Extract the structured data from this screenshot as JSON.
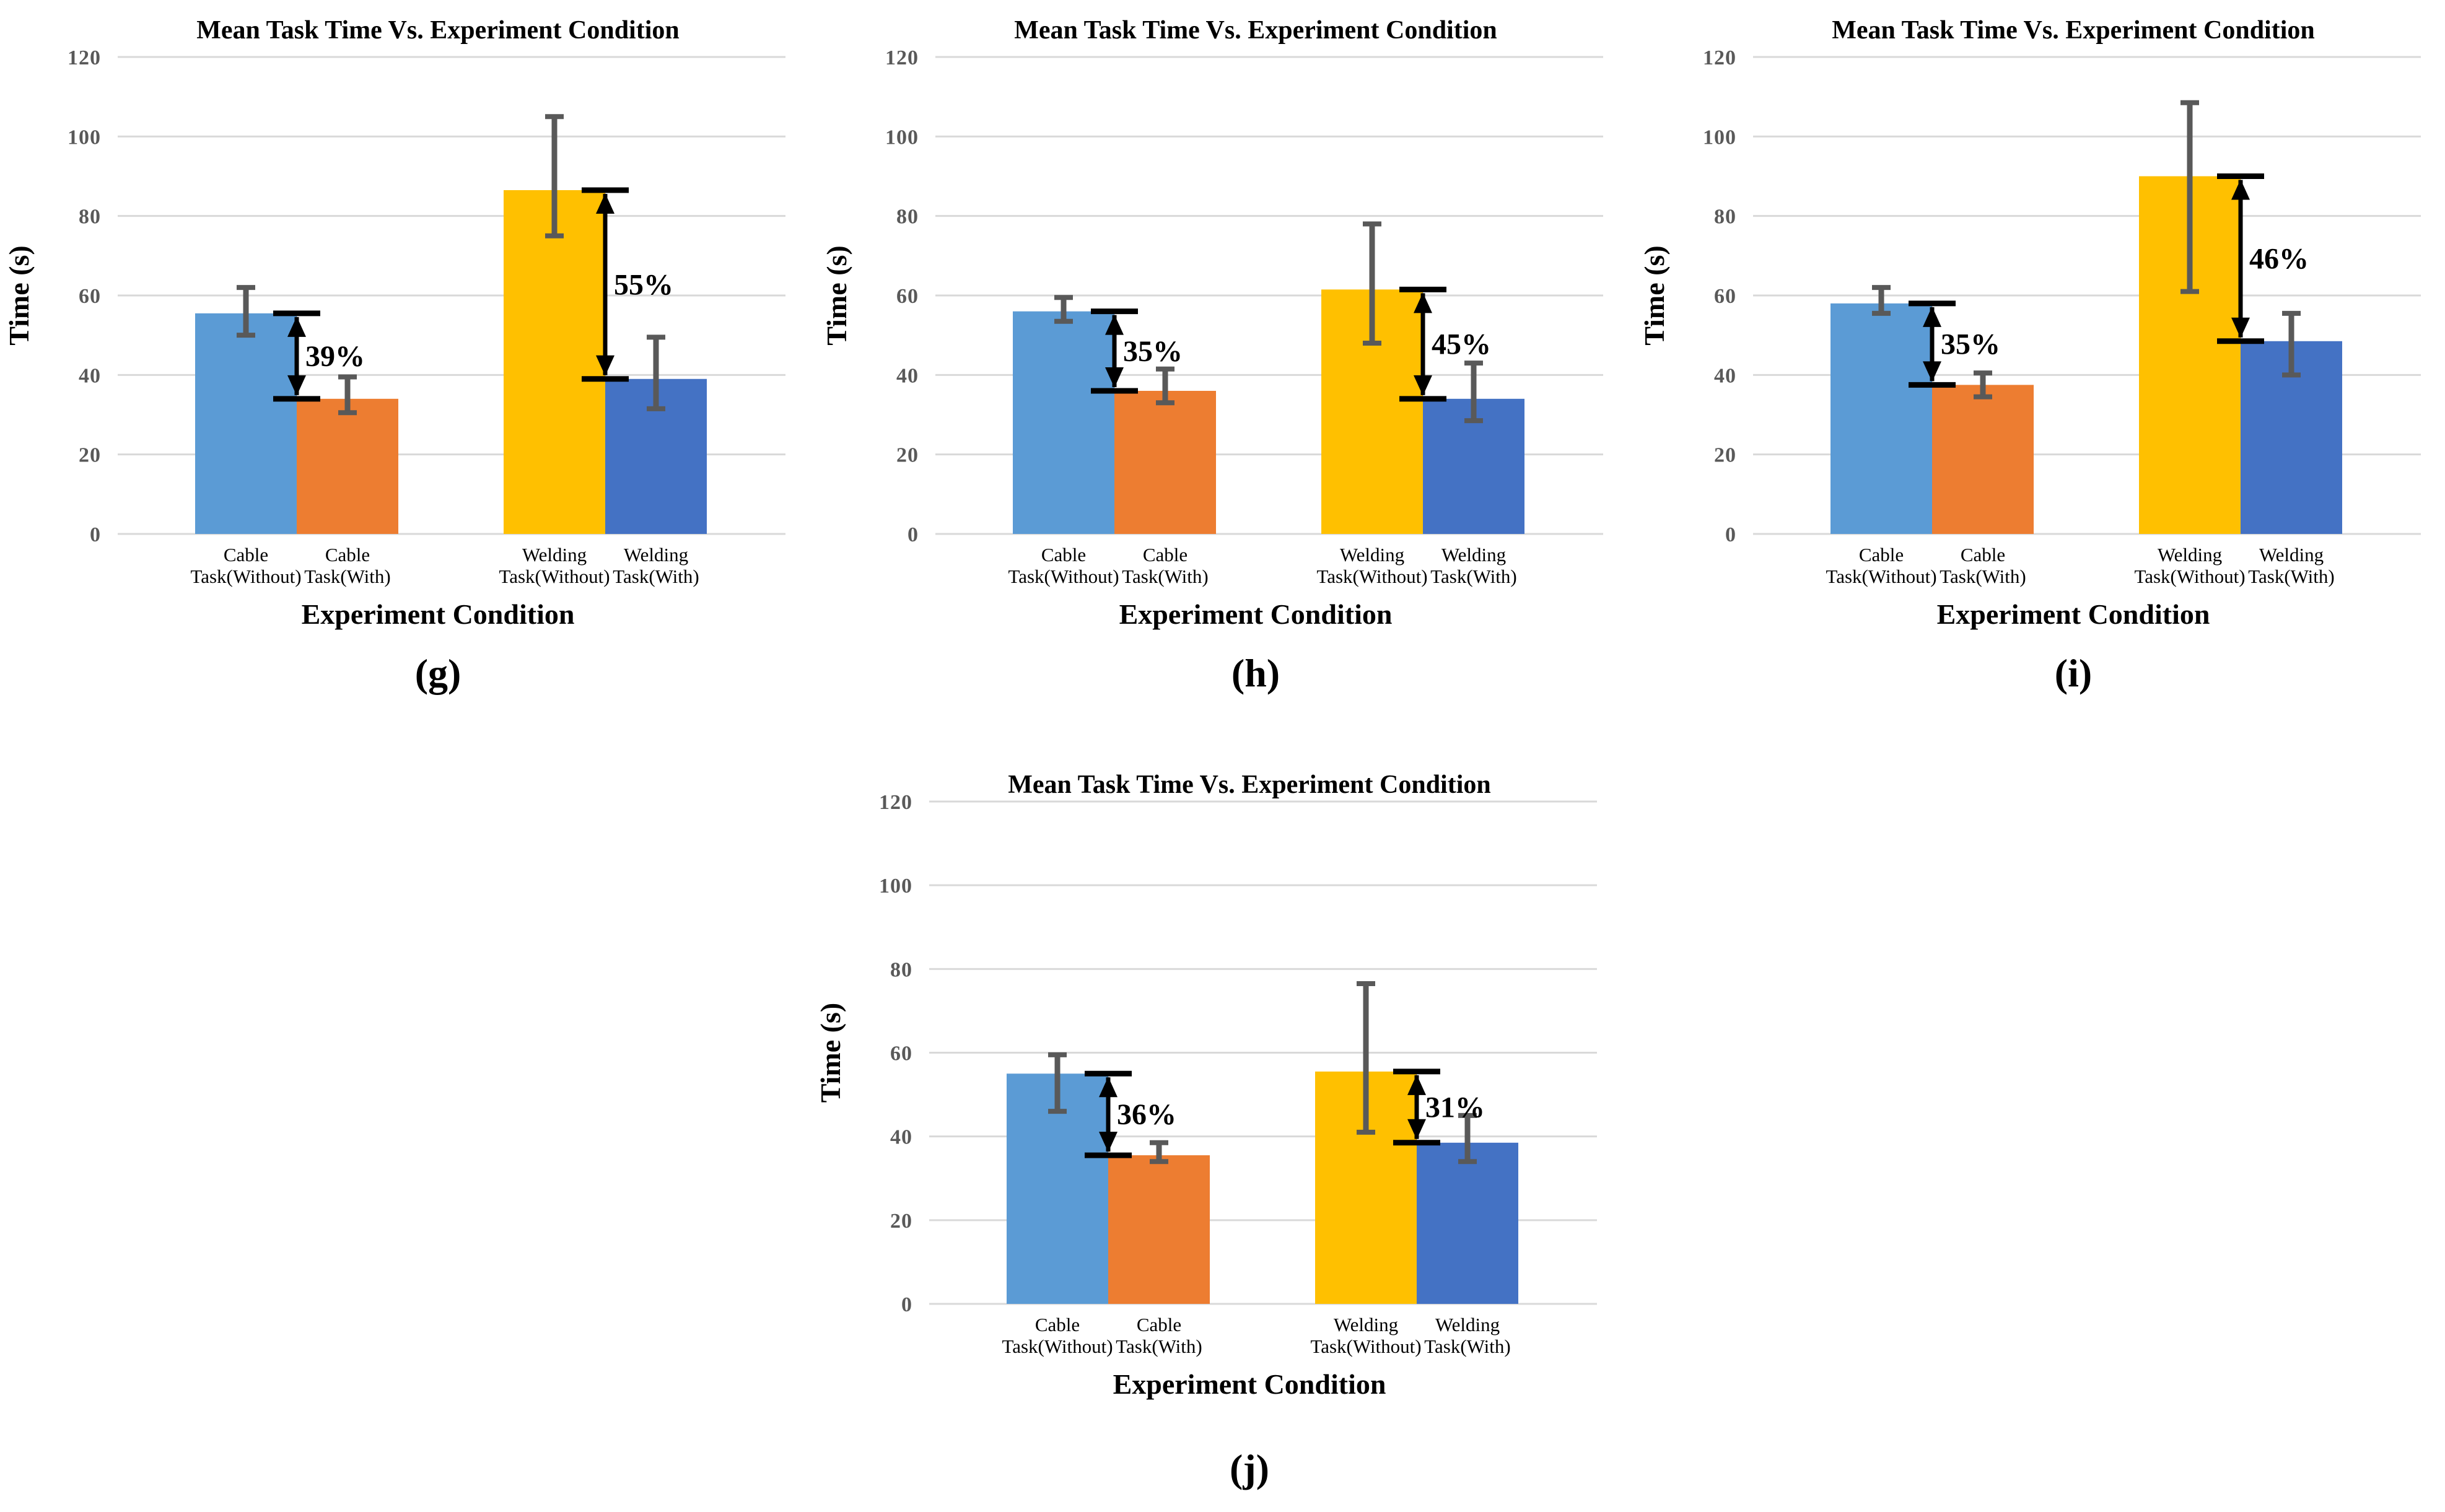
{
  "figure": {
    "background": "#FFFFFF",
    "panel_labels": [
      "(g)",
      "(h)",
      "(i)",
      "(j)"
    ]
  },
  "styles": {
    "bar_colors": [
      "#5B9BD5",
      "#ED7D31",
      "#FFC000",
      "#4472C4"
    ],
    "grid_color": "#D9D9D9",
    "axis_line_color": "#D9D9D9",
    "tick_label_color": "#595959",
    "error_bar_color": "#595959",
    "annotation_color": "#000000",
    "text_color": "#000000"
  },
  "chart_data": [
    {
      "id": "g",
      "type": "bar",
      "title": "Mean Task Time Vs. Experiment Condition",
      "xlabel": "Experiment Condition",
      "ylabel": "Time (s)",
      "sublabel": "(g)",
      "ylim": [
        0,
        120
      ],
      "yticks": [
        0,
        20,
        40,
        60,
        80,
        100,
        120
      ],
      "grid": true,
      "legend": false,
      "categories": [
        [
          "Cable",
          "Task(Without)"
        ],
        [
          "Cable",
          "Task(With)"
        ],
        [
          "Welding",
          "Task(Without)"
        ],
        [
          "Welding",
          "Task(With)"
        ]
      ],
      "values": [
        55.5,
        34,
        86.5,
        39
      ],
      "error_low": [
        50,
        30.5,
        75,
        31.5
      ],
      "error_high": [
        62,
        39.5,
        105,
        49.5
      ],
      "annotations": [
        {
          "from_bar": 0,
          "to_bar": 1,
          "label": "39%"
        },
        {
          "from_bar": 2,
          "to_bar": 3,
          "label": "55%"
        }
      ]
    },
    {
      "id": "h",
      "type": "bar",
      "title": "Mean Task Time Vs. Experiment Condition",
      "xlabel": "Experiment Condition",
      "ylabel": "Time (s)",
      "sublabel": "(h)",
      "ylim": [
        0,
        120
      ],
      "yticks": [
        0,
        20,
        40,
        60,
        80,
        100,
        120
      ],
      "grid": true,
      "legend": false,
      "categories": [
        [
          "Cable",
          "Task(Without)"
        ],
        [
          "Cable",
          "Task(With)"
        ],
        [
          "Welding",
          "Task(Without)"
        ],
        [
          "Welding",
          "Task(With)"
        ]
      ],
      "values": [
        56,
        36,
        61.5,
        34
      ],
      "error_low": [
        53.5,
        33,
        48,
        28.5
      ],
      "error_high": [
        59.5,
        41.5,
        78,
        43
      ],
      "annotations": [
        {
          "from_bar": 0,
          "to_bar": 1,
          "label": "35%"
        },
        {
          "from_bar": 2,
          "to_bar": 3,
          "label": "45%"
        }
      ]
    },
    {
      "id": "i",
      "type": "bar",
      "title": "Mean Task Time Vs. Experiment Condition",
      "xlabel": "Experiment Condition",
      "ylabel": "Time (s)",
      "sublabel": "(i)",
      "ylim": [
        0,
        120
      ],
      "yticks": [
        0,
        20,
        40,
        60,
        80,
        100,
        120
      ],
      "grid": true,
      "legend": false,
      "categories": [
        [
          "Cable",
          "Task(Without)"
        ],
        [
          "Cable",
          "Task(With)"
        ],
        [
          "Welding",
          "Task(Without)"
        ],
        [
          "Welding",
          "Task(With)"
        ]
      ],
      "values": [
        58,
        37.5,
        90,
        48.5
      ],
      "error_low": [
        55.5,
        34.5,
        61,
        40
      ],
      "error_high": [
        62,
        40.5,
        108.5,
        55.5
      ],
      "annotations": [
        {
          "from_bar": 0,
          "to_bar": 1,
          "label": "35%"
        },
        {
          "from_bar": 2,
          "to_bar": 3,
          "label": "46%"
        }
      ]
    },
    {
      "id": "j",
      "type": "bar",
      "title": "Mean Task Time Vs. Experiment Condition",
      "xlabel": "Experiment Condition",
      "ylabel": "Time (s)",
      "sublabel": "(j)",
      "ylim": [
        0,
        120
      ],
      "yticks": [
        0,
        20,
        40,
        60,
        80,
        100,
        120
      ],
      "grid": true,
      "legend": false,
      "categories": [
        [
          "Cable",
          "Task(Without)"
        ],
        [
          "Cable",
          "Task(With)"
        ],
        [
          "Welding",
          "Task(Without)"
        ],
        [
          "Welding",
          "Task(With)"
        ]
      ],
      "values": [
        55,
        35.5,
        55.5,
        38.5
      ],
      "error_low": [
        46,
        34,
        41,
        34
      ],
      "error_high": [
        59.5,
        38.5,
        76.5,
        45
      ],
      "annotations": [
        {
          "from_bar": 0,
          "to_bar": 1,
          "label": "36%"
        },
        {
          "from_bar": 2,
          "to_bar": 3,
          "label": "31%"
        }
      ]
    }
  ]
}
